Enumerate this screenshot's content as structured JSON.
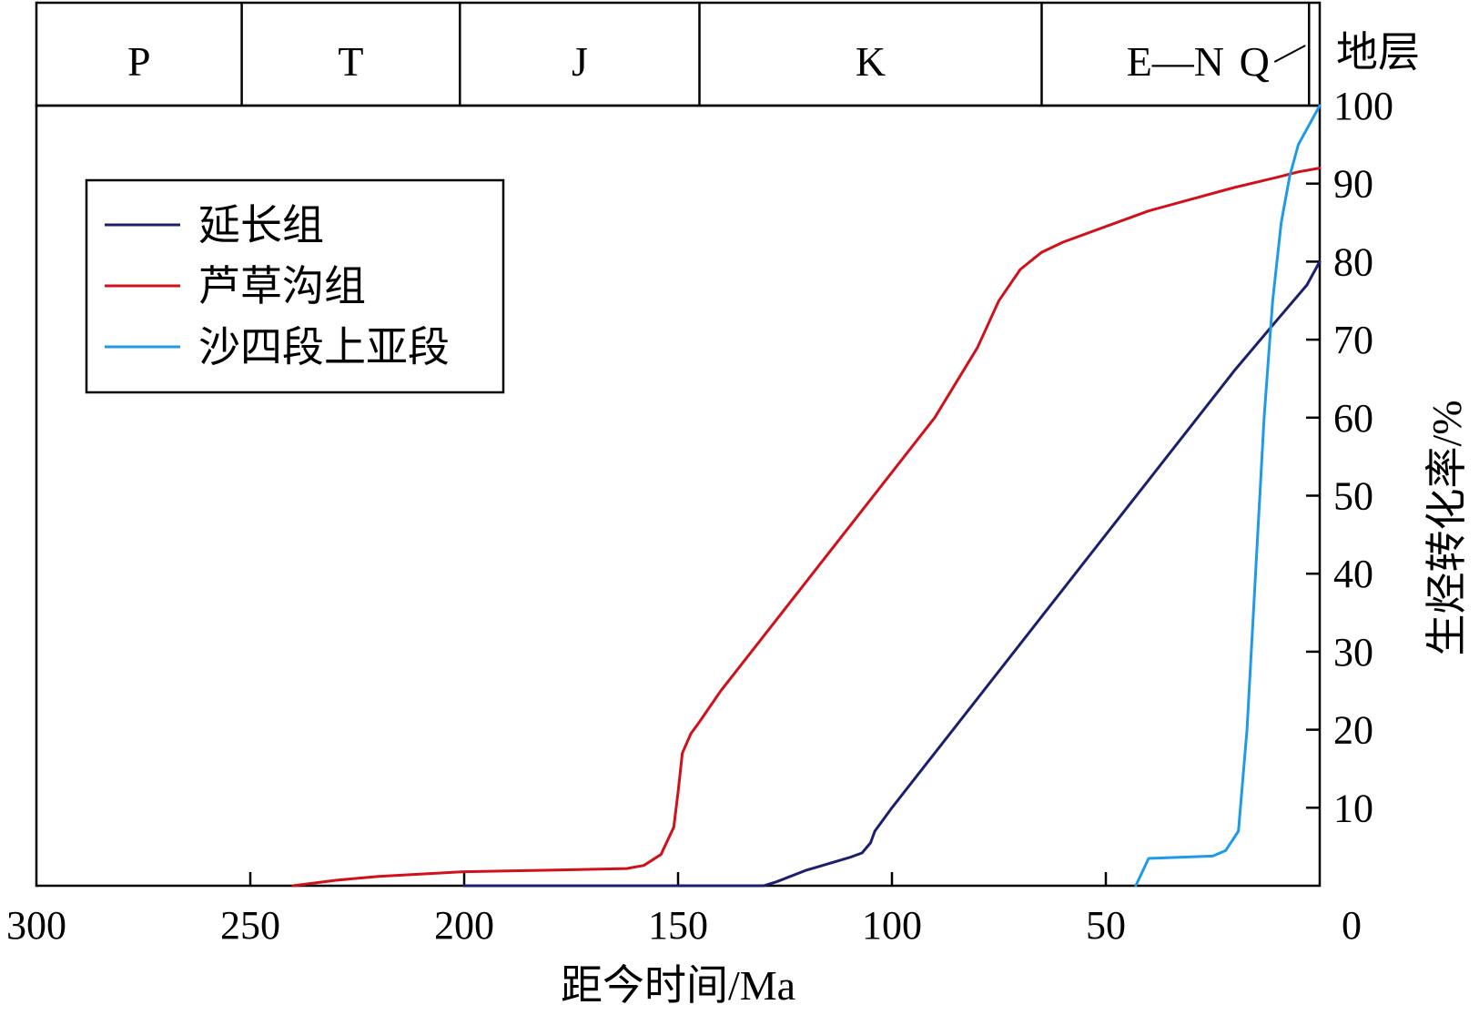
{
  "chart_data": {
    "type": "line",
    "title": "",
    "xlabel": "距今时间/Ma",
    "ylabel": "生烃转化率/%",
    "xlim": [
      300,
      0
    ],
    "ylim": [
      0,
      100
    ],
    "x_ticks": [
      "300",
      "250",
      "200",
      "150",
      "100",
      "50",
      "0"
    ],
    "y_ticks": [
      "10",
      "20",
      "30",
      "40",
      "50",
      "60",
      "70",
      "80",
      "90",
      "100"
    ],
    "grid": false,
    "legend_position": "top-left",
    "strata_label": "地层",
    "strata": [
      {
        "name": "P",
        "from": 300,
        "to": 252
      },
      {
        "name": "T",
        "from": 252,
        "to": 201
      },
      {
        "name": "J",
        "from": 201,
        "to": 145
      },
      {
        "name": "K",
        "from": 145,
        "to": 65
      },
      {
        "name": "E—N",
        "from": 65,
        "to": 2.5
      },
      {
        "name": "Q",
        "from": 2.5,
        "to": 0
      }
    ],
    "series": [
      {
        "name": "延长组",
        "color": "#1a1f6e",
        "points": [
          [
            200,
            0
          ],
          [
            130,
            0
          ],
          [
            127,
            0.5
          ],
          [
            120,
            2.0
          ],
          [
            110,
            3.6
          ],
          [
            107,
            4.2
          ],
          [
            105,
            5.5
          ],
          [
            104,
            7.0
          ],
          [
            100,
            10.0
          ],
          [
            95,
            13.5
          ],
          [
            90,
            17.0
          ],
          [
            80,
            24.0
          ],
          [
            70,
            31.0
          ],
          [
            60,
            38.0
          ],
          [
            50,
            45.0
          ],
          [
            40,
            52.0
          ],
          [
            30,
            59.0
          ],
          [
            20,
            66.0
          ],
          [
            10,
            72.5
          ],
          [
            3,
            77.0
          ],
          [
            0,
            80.0
          ]
        ]
      },
      {
        "name": "芦草沟组",
        "color": "#d0101a",
        "points": [
          [
            240,
            0
          ],
          [
            230,
            0.7
          ],
          [
            220,
            1.2
          ],
          [
            200,
            1.8
          ],
          [
            180,
            2.0
          ],
          [
            162,
            2.2
          ],
          [
            158,
            2.6
          ],
          [
            154,
            4.0
          ],
          [
            151,
            7.5
          ],
          [
            150,
            12.0
          ],
          [
            149,
            17.0
          ],
          [
            147,
            19.5
          ],
          [
            145,
            21.0
          ],
          [
            140,
            25.0
          ],
          [
            130,
            32.0
          ],
          [
            120,
            39.0
          ],
          [
            110,
            46.0
          ],
          [
            100,
            53.0
          ],
          [
            90,
            60.0
          ],
          [
            80,
            69.0
          ],
          [
            75,
            75.0
          ],
          [
            70,
            79.0
          ],
          [
            65,
            81.2
          ],
          [
            60,
            82.5
          ],
          [
            50,
            84.5
          ],
          [
            40,
            86.5
          ],
          [
            30,
            88.0
          ],
          [
            20,
            89.5
          ],
          [
            10,
            90.8
          ],
          [
            5,
            91.5
          ],
          [
            0,
            92.0
          ]
        ]
      },
      {
        "name": "沙四段上亚段",
        "color": "#1f9ae8",
        "points": [
          [
            43,
            0
          ],
          [
            40,
            3.5
          ],
          [
            35,
            3.6
          ],
          [
            25,
            3.8
          ],
          [
            22,
            4.5
          ],
          [
            19,
            7.0
          ],
          [
            17,
            20.0
          ],
          [
            15,
            40.0
          ],
          [
            13,
            60.0
          ],
          [
            11,
            75.0
          ],
          [
            9,
            85.0
          ],
          [
            7,
            91.0
          ],
          [
            5,
            95.0
          ],
          [
            0,
            100.0
          ]
        ]
      }
    ]
  }
}
